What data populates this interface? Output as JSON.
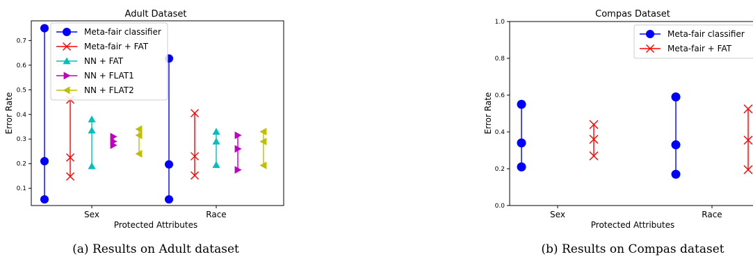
{
  "chart_data": [
    {
      "type": "scatter",
      "title": "Adult Dataset",
      "xlabel": "Protected Attributes",
      "ylabel": "Error Rate",
      "caption": "(a) Results on Adult dataset",
      "categories": [
        "Sex",
        "Race"
      ],
      "ylim": [
        0.03,
        0.78
      ],
      "yticks": [
        0.1,
        0.2,
        0.3,
        0.4,
        0.5,
        0.6,
        0.7
      ],
      "ytick_labels": [
        "0.1",
        "0.2",
        "0.3",
        "0.4",
        "0.5",
        "0.6",
        "0.7"
      ],
      "legend_position": "top-left",
      "series": [
        {
          "name": "Meta-fair classifier",
          "color": "#0000ff",
          "marker": "circle",
          "values": [
            [
              0.055,
              0.21,
              0.75
            ],
            [
              0.055,
              0.197,
              0.627
            ]
          ]
        },
        {
          "name": "Meta-fair + FAT",
          "color": "#ff0000",
          "marker": "x",
          "values": [
            [
              0.148,
              0.225,
              0.46
            ],
            [
              0.152,
              0.23,
              0.405
            ]
          ]
        },
        {
          "name": "NN + FAT",
          "color": "#00bfbf",
          "marker": "triangle-up",
          "values": [
            [
              0.19,
              0.335,
              0.38
            ],
            [
              0.195,
              0.29,
              0.33
            ]
          ]
        },
        {
          "name": "NN + FLAT1",
          "color": "#bf00bf",
          "marker": "triangle-right",
          "values": [
            [
              0.275,
              0.29,
              0.31
            ],
            [
              0.175,
              0.26,
              0.315
            ]
          ]
        },
        {
          "name": "NN + FLAT2",
          "color": "#bfbf00",
          "marker": "triangle-left",
          "values": [
            [
              0.24,
              0.315,
              0.34
            ],
            [
              0.193,
              0.29,
              0.33
            ]
          ]
        }
      ]
    },
    {
      "type": "scatter",
      "title": "Compas Dataset",
      "xlabel": "Protected Attributes",
      "ylabel": "Error Rate",
      "caption": "(b) Results on Compas dataset",
      "categories": [
        "Sex",
        "Race"
      ],
      "ylim": [
        0.0,
        1.0
      ],
      "yticks": [
        0.0,
        0.2,
        0.4,
        0.6,
        0.8,
        1.0
      ],
      "ytick_labels": [
        "0.0",
        "0.2",
        "0.4",
        "0.6",
        "0.8",
        "1.0"
      ],
      "legend_position": "top-right",
      "series": [
        {
          "name": "Meta-fair classifier",
          "color": "#0000ff",
          "marker": "circle",
          "values": [
            [
              0.21,
              0.34,
              0.55
            ],
            [
              0.17,
              0.33,
              0.59
            ]
          ]
        },
        {
          "name": "Meta-fair + FAT",
          "color": "#ff0000",
          "marker": "x",
          "values": [
            [
              0.27,
              0.36,
              0.44
            ],
            [
              0.195,
              0.355,
              0.525
            ]
          ]
        }
      ]
    }
  ]
}
